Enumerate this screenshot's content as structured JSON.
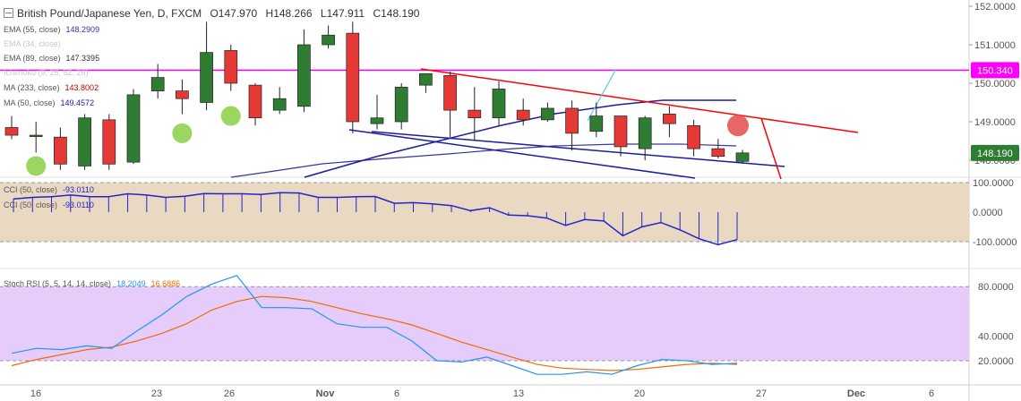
{
  "header": {
    "title": "British Pound/Japanese Yen, D, FXCM",
    "open": "O147.970",
    "high": "H148.266",
    "low": "L147.911",
    "close": "C148.190"
  },
  "indicators": [
    {
      "label": "EMA (55, close)",
      "value": "148.2909",
      "color": "#3333aa",
      "label_color": "#555555"
    },
    {
      "label": "EMA (34, close)",
      "value": "",
      "color": "#cccccc",
      "label_color": "#cccccc"
    },
    {
      "label": "EMA (89, close)",
      "value": "147.3395",
      "color": "#333333",
      "label_color": "#555555"
    },
    {
      "label": "Ichimoku (9, 26, 52, 26)",
      "value": "",
      "color": "#cccccc",
      "label_color": "#cccccc"
    },
    {
      "label": "MA (233, close)",
      "value": "143.8002",
      "color": "#c00000",
      "label_color": "#555555"
    },
    {
      "label": "MA (50, close)",
      "value": "149.4572",
      "color": "#1c1ca0",
      "label_color": "#555555"
    }
  ],
  "cci_legend": [
    {
      "label": "CCI (50, close)",
      "value": "-93.0110"
    },
    {
      "label": "CCI (50, close)",
      "value": "-93.0110"
    }
  ],
  "rsi_legend": {
    "label": "Stoch RSI (5, 5, 14, 14, close)",
    "k": "18.2049",
    "d": "16.6886"
  },
  "price_axis": {
    "ticks": [
      "152.0000",
      "151.0000",
      "150.0000",
      "149.0000",
      "148.0000"
    ],
    "values": [
      152,
      151,
      150,
      149,
      148
    ],
    "hline_label": "150.340",
    "last_label": "148.190"
  },
  "cci_axis": {
    "ticks": [
      "100.0000",
      "0.0000",
      "-100.0000"
    ],
    "values": [
      100,
      0,
      -100
    ]
  },
  "rsi_axis": {
    "ticks": [
      "80.0000",
      "40.0000",
      "20.0000"
    ],
    "values": [
      80,
      40,
      20
    ]
  },
  "x_axis": {
    "ticks": [
      "16",
      "23",
      "26",
      "Nov",
      "6",
      "13",
      "20",
      "27",
      "Dec",
      "6"
    ],
    "bold": [
      "Nov",
      "Dec"
    ]
  },
  "colors": {
    "up": "#2e7d32",
    "down": "#e53935",
    "hline": "#ff00ff",
    "trend": "#ff0000",
    "channel": "#1c1ca0",
    "cci": "#2424c8",
    "cci_bg": "#ead9c2",
    "rsi_bg": "#e5ccfb",
    "rsi_k": "#2196f3",
    "rsi_d": "#ef6c00",
    "marker_green": "#8fd14f",
    "marker_red": "#e54b4b"
  },
  "chart_data": {
    "type": "candlestick",
    "candles": [
      {
        "o": 148.85,
        "h": 149.15,
        "l": 148.55,
        "c": 148.65
      },
      {
        "o": 148.62,
        "h": 149.0,
        "l": 148.2,
        "c": 148.65
      },
      {
        "o": 148.6,
        "h": 148.85,
        "l": 147.75,
        "c": 147.9
      },
      {
        "o": 147.85,
        "h": 149.2,
        "l": 147.75,
        "c": 149.1
      },
      {
        "o": 149.05,
        "h": 149.2,
        "l": 147.75,
        "c": 147.9
      },
      {
        "o": 147.95,
        "h": 149.85,
        "l": 147.9,
        "c": 149.7
      },
      {
        "o": 149.8,
        "h": 150.5,
        "l": 149.6,
        "c": 150.15
      },
      {
        "o": 149.8,
        "h": 150.1,
        "l": 149.2,
        "c": 149.6
      },
      {
        "o": 149.5,
        "h": 151.6,
        "l": 149.3,
        "c": 150.8
      },
      {
        "o": 150.85,
        "h": 151.0,
        "l": 149.8,
        "c": 150.0
      },
      {
        "o": 149.95,
        "h": 150.0,
        "l": 148.9,
        "c": 149.1
      },
      {
        "o": 149.3,
        "h": 149.9,
        "l": 149.2,
        "c": 149.6
      },
      {
        "o": 149.4,
        "h": 151.4,
        "l": 149.25,
        "c": 151.0
      },
      {
        "o": 151.0,
        "h": 151.5,
        "l": 150.9,
        "c": 151.25
      },
      {
        "o": 151.3,
        "h": 151.6,
        "l": 148.7,
        "c": 149.0
      },
      {
        "o": 148.95,
        "h": 149.7,
        "l": 148.8,
        "c": 149.1
      },
      {
        "o": 149.0,
        "h": 150.0,
        "l": 148.8,
        "c": 149.9
      },
      {
        "o": 149.95,
        "h": 150.25,
        "l": 149.75,
        "c": 150.25
      },
      {
        "o": 150.2,
        "h": 150.3,
        "l": 148.6,
        "c": 149.3
      },
      {
        "o": 149.3,
        "h": 149.9,
        "l": 148.5,
        "c": 149.1
      },
      {
        "o": 149.1,
        "h": 150.05,
        "l": 148.9,
        "c": 149.85
      },
      {
        "o": 149.3,
        "h": 149.6,
        "l": 148.9,
        "c": 149.05
      },
      {
        "o": 149.05,
        "h": 149.5,
        "l": 149.0,
        "c": 149.35
      },
      {
        "o": 149.35,
        "h": 149.55,
        "l": 148.25,
        "c": 148.7
      },
      {
        "o": 148.75,
        "h": 149.5,
        "l": 148.6,
        "c": 149.15
      },
      {
        "o": 149.15,
        "h": 149.15,
        "l": 148.1,
        "c": 148.35
      },
      {
        "o": 148.3,
        "h": 149.15,
        "l": 148.0,
        "c": 149.1
      },
      {
        "o": 149.2,
        "h": 149.4,
        "l": 148.6,
        "c": 148.95
      },
      {
        "o": 148.9,
        "h": 149.05,
        "l": 148.1,
        "c": 148.3
      },
      {
        "o": 148.3,
        "h": 148.55,
        "l": 148.05,
        "c": 148.1
      },
      {
        "o": 147.97,
        "h": 148.266,
        "l": 147.911,
        "c": 148.19
      }
    ],
    "cci": [
      45,
      50,
      52,
      58,
      52,
      52,
      62,
      58,
      50,
      54,
      63,
      62,
      62,
      60,
      66,
      65,
      50,
      50,
      52,
      53,
      30,
      32,
      28,
      22,
      5,
      15,
      -10,
      -12,
      -20,
      -45,
      -25,
      -30,
      -80,
      -50,
      -35,
      -60,
      -90,
      -110,
      -93
    ],
    "stoch_k": [
      26,
      30,
      29,
      32,
      30,
      44,
      57,
      72,
      82,
      89,
      63,
      63,
      62,
      50,
      47,
      47,
      36,
      20,
      19,
      23,
      16,
      9,
      9,
      11,
      9,
      16,
      21,
      20,
      17,
      18
    ],
    "stoch_d": [
      16,
      21,
      25,
      29,
      31,
      36,
      42,
      50,
      61,
      68,
      72,
      71,
      68,
      63,
      58,
      54,
      49,
      42,
      35,
      29,
      23,
      17,
      14,
      13,
      12,
      13,
      15,
      17,
      18,
      17
    ],
    "horizontal_level": 150.34,
    "marker_green_prices": [
      147.85,
      148.7,
      149.15
    ],
    "marker_red_price": 148.9
  }
}
